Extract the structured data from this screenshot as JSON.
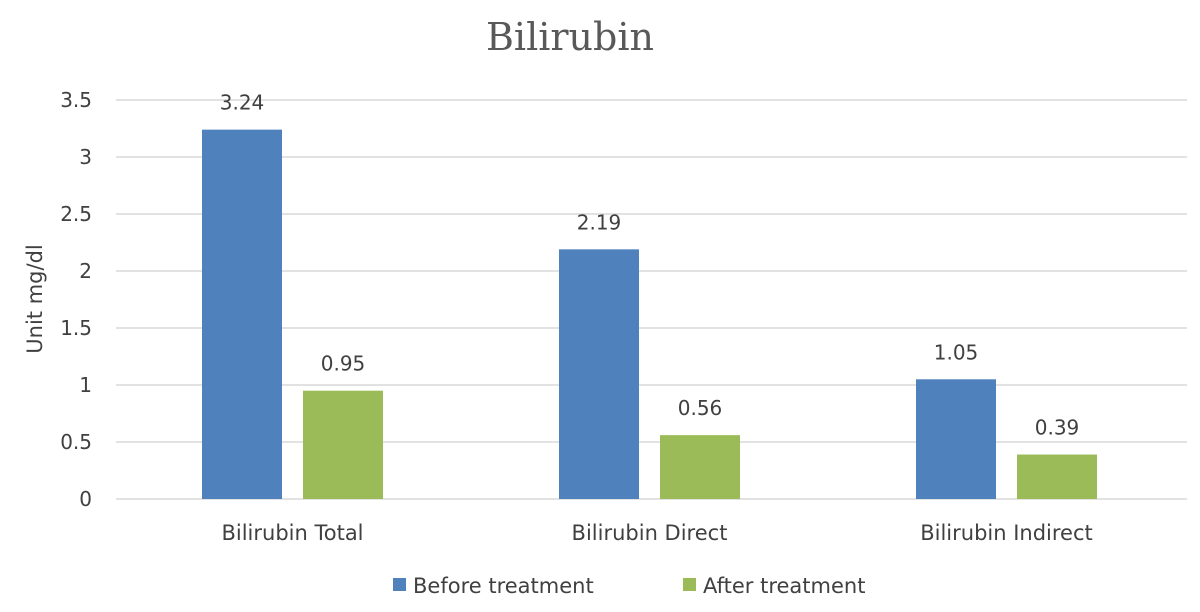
{
  "chart_data": {
    "type": "bar",
    "title": "Bilirubin",
    "xlabel": "",
    "ylabel": "Unit mg/dl",
    "categories": [
      "Bilirubin Total",
      "Bilirubin Direct",
      "Bilirubin Indirect"
    ],
    "series": [
      {
        "name": "Before treatment",
        "values": [
          3.24,
          2.19,
          1.05
        ],
        "color": "#4f81bd"
      },
      {
        "name": "After treatment",
        "values": [
          0.95,
          0.56,
          0.39
        ],
        "color": "#9bbb59"
      }
    ],
    "ylim": [
      0,
      3.5
    ],
    "yticks": [
      "0",
      "0.5",
      "1",
      "1.5",
      "2",
      "2.5",
      "3",
      "3.5"
    ],
    "grid": true,
    "legend_position": "bottom",
    "data_labels": true
  }
}
